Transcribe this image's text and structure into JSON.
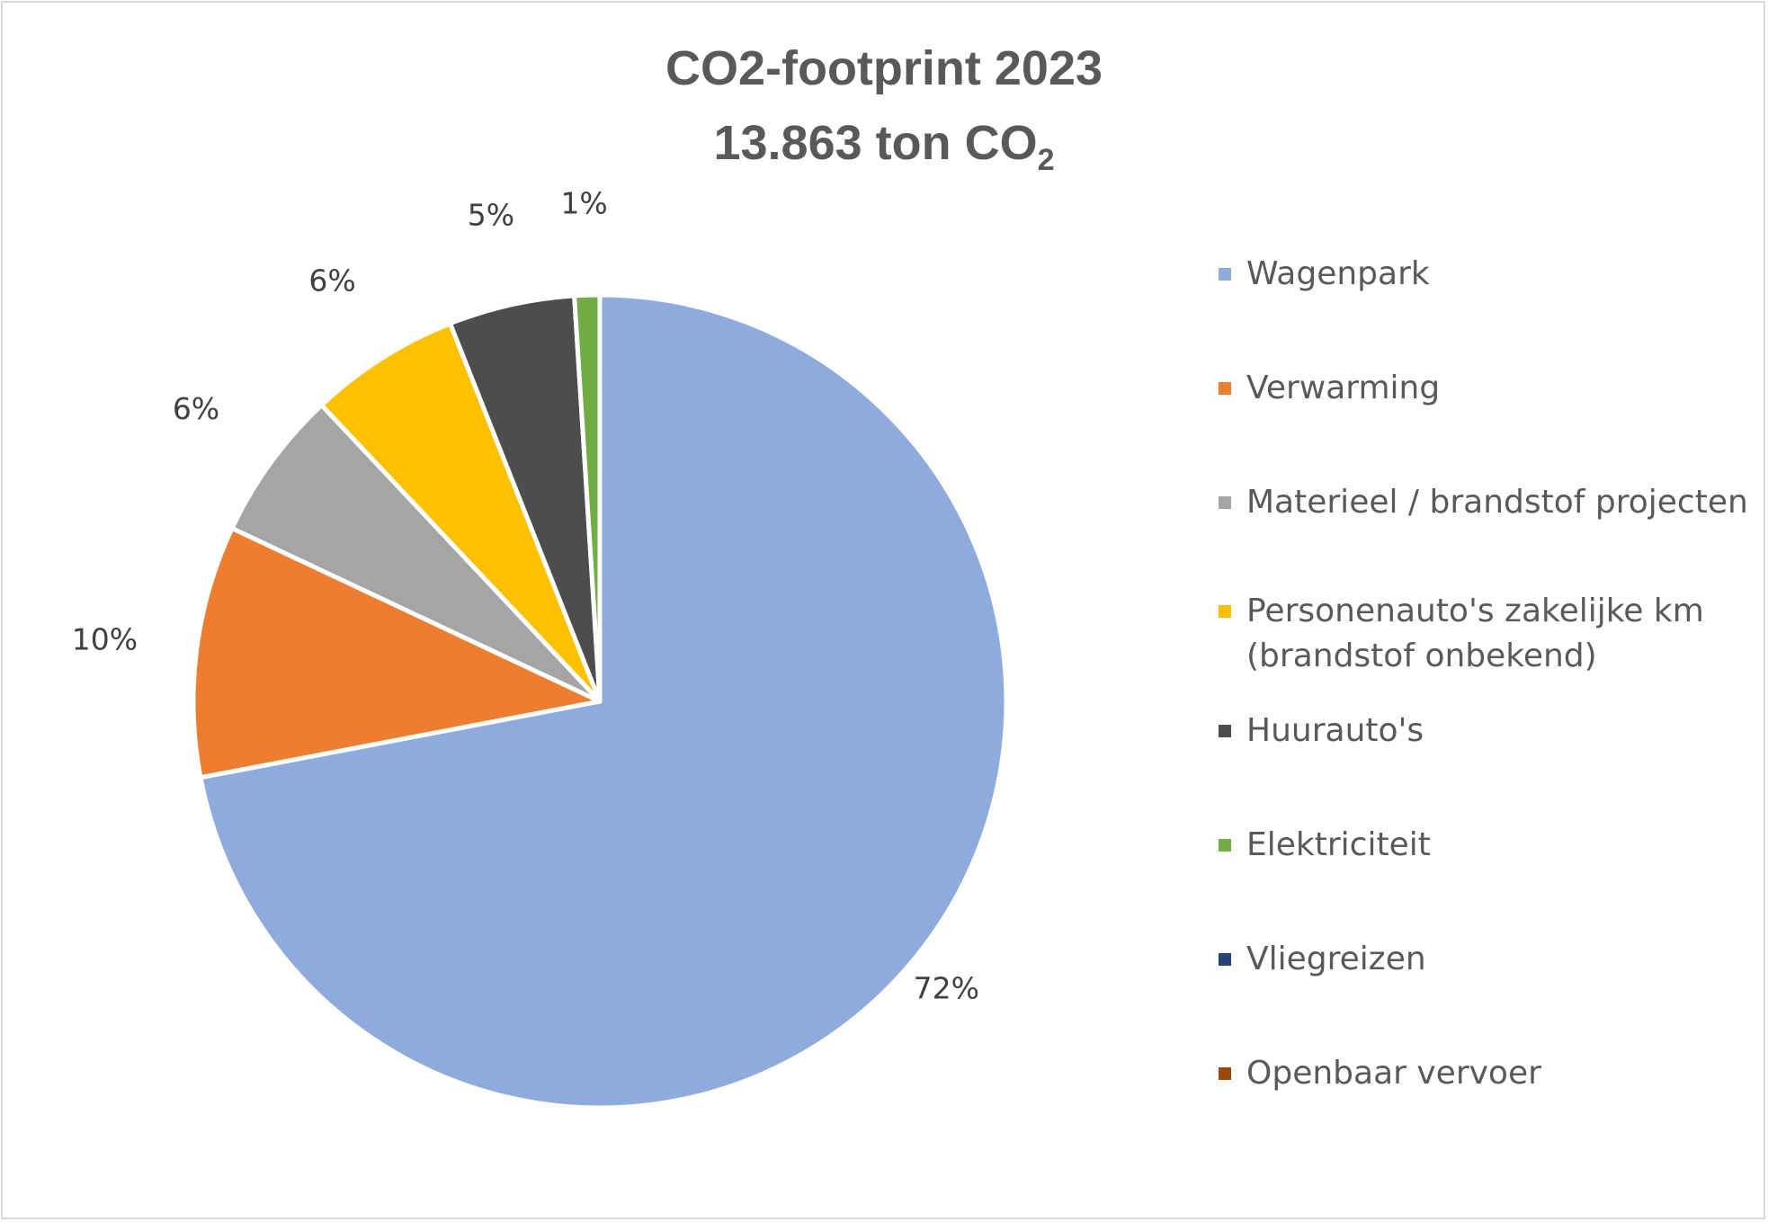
{
  "chart_data": {
    "type": "pie",
    "title": "CO2-footprint 2023",
    "subtitle_prefix": "13.863 ton CO",
    "subtitle_subscript": "2",
    "legend_position": "right",
    "slices": [
      {
        "name": "Wagenpark",
        "value": 72,
        "label": "72%",
        "color": "#8FAADC"
      },
      {
        "name": "Verwarming",
        "value": 10,
        "label": "10%",
        "color": "#ED7D31"
      },
      {
        "name": "Materieel / brandstof projecten",
        "value": 6,
        "label": "6%",
        "color": "#A5A5A5"
      },
      {
        "name": "Personenauto's zakelijke km (brandstof onbekend)",
        "value": 6,
        "label": "6%",
        "color": "#FFC000"
      },
      {
        "name": "Huurauto's",
        "value": 5,
        "label": "5%",
        "color": "#4D4D4D"
      },
      {
        "name": "Elektriciteit",
        "value": 1,
        "label": "1%",
        "color": "#70AD47"
      },
      {
        "name": "Vliegreizen",
        "value": 0,
        "label": "",
        "color": "#264478"
      },
      {
        "name": "Openbaar vervoer",
        "value": 0,
        "label": "",
        "color": "#9E480E"
      }
    ],
    "legend_labels": [
      "Wagenpark",
      "Verwarming",
      "Materieel / brandstof projecten",
      "Personenauto's zakelijke km\n(brandstof onbekend)",
      "Huurauto's",
      "Elektriciteit",
      "Vliegreizen",
      "Openbaar vervoer"
    ]
  }
}
